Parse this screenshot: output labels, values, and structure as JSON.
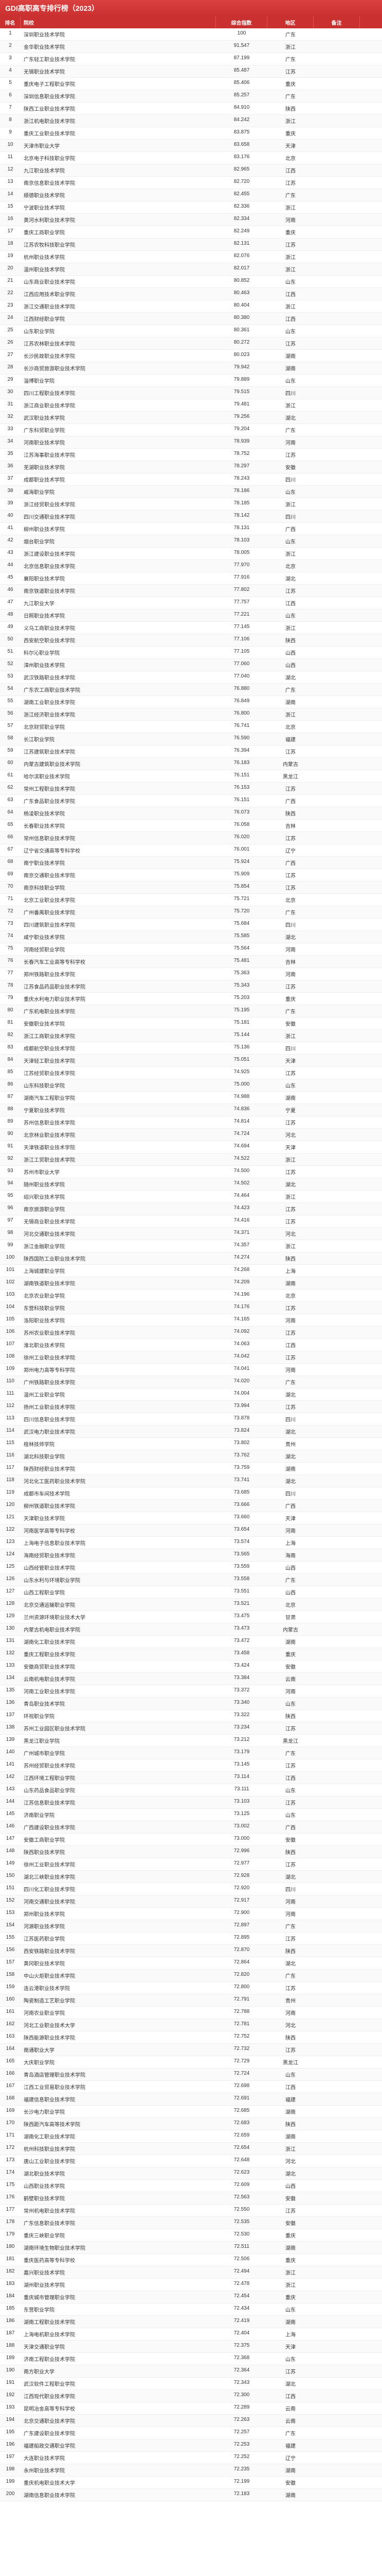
{
  "title": "GDI高职高专排行榜（2023）",
  "columns": [
    "排名",
    "院校",
    "综合指数",
    "地区",
    "备注"
  ],
  "header_bg": "#c93030",
  "header_fg": "#ffffff",
  "row_alt_bg": "#fafafa",
  "rows": [
    [
      1,
      "深圳职业技术学院",
      100,
      "广东",
      ""
    ],
    [
      2,
      "金华职业技术学院",
      91.547,
      "浙江",
      ""
    ],
    [
      3,
      "广东轻工职业技术学院",
      87.199,
      "广东",
      ""
    ],
    [
      4,
      "无锡职业技术学院",
      85.487,
      "江苏",
      ""
    ],
    [
      5,
      "重庆电子工程职业学院",
      85.406,
      "重庆",
      ""
    ],
    [
      6,
      "深圳信息职业技术学院",
      85.257,
      "广东",
      ""
    ],
    [
      7,
      "陕西工业职业技术学院",
      84.91,
      "陕西",
      ""
    ],
    [
      8,
      "浙江机电职业技术学院",
      84.242,
      "浙江",
      ""
    ],
    [
      9,
      "重庆工业职业技术学院",
      83.875,
      "重庆",
      ""
    ],
    [
      10,
      "天津市职业大学",
      83.658,
      "天津",
      ""
    ],
    [
      11,
      "北京电子科技职业学院",
      83.176,
      "北京",
      ""
    ],
    [
      12,
      "九江职业技术学院",
      82.965,
      "江西",
      ""
    ],
    [
      13,
      "南京信息职业技术学院",
      82.72,
      "江苏",
      ""
    ],
    [
      14,
      "顺德职业技术学院",
      82.455,
      "广东",
      ""
    ],
    [
      15,
      "宁波职业技术学院",
      82.336,
      "浙江",
      ""
    ],
    [
      16,
      "黄河水利职业技术学院",
      82.334,
      "河南",
      ""
    ],
    [
      17,
      "重庆工商职业学院",
      82.249,
      "重庆",
      ""
    ],
    [
      18,
      "江苏农牧科技职业学院",
      82.131,
      "江苏",
      ""
    ],
    [
      19,
      "杭州职业技术学院",
      82.076,
      "浙江",
      ""
    ],
    [
      20,
      "温州职业技术学院",
      82.017,
      "浙江",
      ""
    ],
    [
      21,
      "山东商业职业技术学院",
      80.852,
      "山东",
      ""
    ],
    [
      22,
      "江西应用技术职业学院",
      80.463,
      "江西",
      ""
    ],
    [
      23,
      "浙江交通职业技术学院",
      80.404,
      "浙江",
      ""
    ],
    [
      24,
      "江西财经职业学院",
      80.38,
      "江西",
      ""
    ],
    [
      25,
      "山东职业学院",
      80.361,
      "山东",
      ""
    ],
    [
      26,
      "江苏农林职业技术学院",
      80.272,
      "江苏",
      ""
    ],
    [
      27,
      "长沙民政职业技术学院",
      80.023,
      "湖南",
      ""
    ],
    [
      28,
      "长沙商贸旅游职业技术学院",
      79.942,
      "湖南",
      ""
    ],
    [
      29,
      "淄博职业学院",
      79.889,
      "山东",
      ""
    ],
    [
      30,
      "四川工程职业技术学院",
      79.515,
      "四川",
      ""
    ],
    [
      31,
      "浙江商业职业技术学院",
      79.481,
      "浙江",
      ""
    ],
    [
      32,
      "武汉职业技术学院",
      79.256,
      "湖北",
      ""
    ],
    [
      33,
      "广东科贸职业学院",
      79.204,
      "广东",
      ""
    ],
    [
      34,
      "河南职业技术学院",
      78.939,
      "河南",
      ""
    ],
    [
      35,
      "江苏海事职业技术学院",
      78.752,
      "江苏",
      ""
    ],
    [
      36,
      "芜湖职业技术学院",
      78.297,
      "安徽",
      ""
    ],
    [
      37,
      "成都职业技术学院",
      78.243,
      "四川",
      ""
    ],
    [
      38,
      "威海职业学院",
      78.186,
      "山东",
      ""
    ],
    [
      39,
      "浙江经贸职业技术学院",
      78.185,
      "浙江",
      ""
    ],
    [
      40,
      "四川交通职业技术学院",
      78.142,
      "四川",
      ""
    ],
    [
      41,
      "柳州职业技术学院",
      78.131,
      "广西",
      ""
    ],
    [
      42,
      "烟台职业学院",
      78.103,
      "山东",
      ""
    ],
    [
      43,
      "浙江建设职业技术学院",
      78.005,
      "浙江",
      ""
    ],
    [
      44,
      "北京信息职业技术学院",
      77.97,
      "北京",
      ""
    ],
    [
      45,
      "襄阳职业技术学院",
      77.916,
      "湖北",
      ""
    ],
    [
      46,
      "南京铁道职业技术学院",
      77.802,
      "江苏",
      ""
    ],
    [
      47,
      "九江职业大学",
      77.757,
      "江西",
      ""
    ],
    [
      48,
      "日照职业技术学院",
      77.221,
      "山东",
      ""
    ],
    [
      49,
      "义乌工商职业技术学院",
      77.145,
      "浙江",
      ""
    ],
    [
      50,
      "西安航空职业技术学院",
      77.106,
      "陕西",
      ""
    ],
    [
      51,
      "科尔沁职业学院",
      77.105,
      "山西",
      ""
    ],
    [
      52,
      "漳州职业技术学院",
      77.06,
      "山西",
      ""
    ],
    [
      53,
      "武汉铁路职业技术学院",
      77.04,
      "湖北",
      ""
    ],
    [
      54,
      "广东农工商职业技术学院",
      76.88,
      "广东",
      ""
    ],
    [
      55,
      "湖南工业职业技术学院",
      76.849,
      "湖南",
      ""
    ],
    [
      56,
      "浙江经济职业技术学院",
      76.8,
      "浙江",
      ""
    ],
    [
      57,
      "北京财贸职业学院",
      76.741,
      "北京",
      ""
    ],
    [
      58,
      "长江职业学院",
      76.59,
      "福建",
      ""
    ],
    [
      59,
      "江苏建筑职业技术学院",
      76.394,
      "江苏",
      ""
    ],
    [
      60,
      "内蒙古建筑职业技术学院",
      76.183,
      "内蒙古",
      ""
    ],
    [
      61,
      "哈尔滨职业技术学院",
      76.151,
      "黑龙江",
      ""
    ],
    [
      62,
      "常州工程职业技术学院",
      76.153,
      "江苏",
      ""
    ],
    [
      63,
      "广东食品职业技术学院",
      76.151,
      "广西",
      ""
    ],
    [
      64,
      "杨凌职业技术学院",
      76.073,
      "陕西",
      ""
    ],
    [
      65,
      "长春职业技术学院",
      76.058,
      "吉林",
      ""
    ],
    [
      66,
      "常州信息职业技术学院",
      76.02,
      "江苏",
      ""
    ],
    [
      67,
      "辽宁省交通高等专科学校",
      76.001,
      "辽宁",
      ""
    ],
    [
      68,
      "南宁职业技术学院",
      75.924,
      "广西",
      ""
    ],
    [
      69,
      "南京交通职业技术学院",
      75.909,
      "江苏",
      ""
    ],
    [
      70,
      "南京科技职业学院",
      75.854,
      "江苏",
      ""
    ],
    [
      71,
      "北京工业职业技术学院",
      75.721,
      "北京",
      ""
    ],
    [
      72,
      "广州番禺职业技术学院",
      75.72,
      "广东",
      ""
    ],
    [
      73,
      "四川建筑职业技术学院",
      75.684,
      "四川",
      ""
    ],
    [
      74,
      "咸宁职业技术学院",
      75.585,
      "湖北",
      ""
    ],
    [
      75,
      "河南经贸职业学院",
      75.564,
      "河南",
      ""
    ],
    [
      76,
      "长春汽车工业高等专科学校",
      75.481,
      "吉林",
      ""
    ],
    [
      77,
      "郑州铁路职业技术学院",
      75.363,
      "河南",
      ""
    ],
    [
      78,
      "江苏食品药品职业技术学院",
      75.343,
      "江苏",
      ""
    ],
    [
      79,
      "重庆水利电力职业技术学院",
      75.203,
      "重庆",
      ""
    ],
    [
      80,
      "广东机电职业技术学院",
      75.195,
      "广东",
      ""
    ],
    [
      81,
      "安徽职业技术学院",
      75.181,
      "安徽",
      ""
    ],
    [
      82,
      "浙江工商职业技术学院",
      75.144,
      "浙江",
      ""
    ],
    [
      83,
      "成都航空职业技术学院",
      75.136,
      "四川",
      ""
    ],
    [
      84,
      "天津轻工职业技术学院",
      75.051,
      "天津",
      ""
    ],
    [
      85,
      "江苏经贸职业技术学院",
      74.925,
      "江苏",
      ""
    ],
    [
      86,
      "山东科技职业学院",
      75.0,
      "山东",
      ""
    ],
    [
      87,
      "湖南汽车工程职业学院",
      74.988,
      "湖南",
      ""
    ],
    [
      88,
      "宁夏职业技术学院",
      74.836,
      "宁夏",
      ""
    ],
    [
      89,
      "苏州信息职业技术学院",
      74.814,
      "江苏",
      ""
    ],
    [
      90,
      "北京林业职业技术学院",
      74.724,
      "河北",
      ""
    ],
    [
      91,
      "天津铁道职业技术学院",
      74.694,
      "天津",
      ""
    ],
    [
      92,
      "浙江工贸职业技术学院",
      74.522,
      "浙江",
      ""
    ],
    [
      93,
      "苏州市职业大学",
      74.5,
      "江苏",
      ""
    ],
    [
      94,
      "随州职业技术学院",
      74.502,
      "湖北",
      ""
    ],
    [
      95,
      "绍兴职业技术学院",
      74.464,
      "浙江",
      ""
    ],
    [
      96,
      "南京旅游职业学院",
      74.423,
      "江苏",
      ""
    ],
    [
      97,
      "无锡商业职业技术学院",
      74.416,
      "江苏",
      ""
    ],
    [
      98,
      "河北交通职业技术学院",
      74.371,
      "河北",
      ""
    ],
    [
      99,
      "浙江金融职业学院",
      74.357,
      "浙江",
      ""
    ],
    [
      100,
      "陕西国防工业职业技术学院",
      74.274,
      "陕西",
      ""
    ],
    [
      101,
      "上海城建职业学院",
      74.268,
      "上海",
      ""
    ],
    [
      102,
      "湖南铁道职业技术学院",
      74.209,
      "湖南",
      ""
    ],
    [
      103,
      "北京农业职业学院",
      74.196,
      "北京",
      ""
    ],
    [
      104,
      "东营科技职业学院",
      74.176,
      "江苏",
      ""
    ],
    [
      105,
      "洛阳职业技术学院",
      74.165,
      "河南",
      ""
    ],
    [
      106,
      "苏州农业职业技术学院",
      74.092,
      "江苏",
      ""
    ],
    [
      107,
      "淮北职业技术学院",
      74.063,
      "江西",
      ""
    ],
    [
      108,
      "徐州工业职业技术学院",
      74.042,
      "江苏",
      ""
    ],
    [
      109,
      "郑州电力高等专科学院",
      74.041,
      "河南",
      ""
    ],
    [
      110,
      "广州铁路职业技术学院",
      74.02,
      "广东",
      ""
    ],
    [
      111,
      "温州工业职业学院",
      74.004,
      "湖北",
      ""
    ],
    [
      112,
      "扬州工业职业技术学院",
      73.994,
      "江苏",
      ""
    ],
    [
      113,
      "四川信息职业技术学院",
      73.878,
      "四川",
      ""
    ],
    [
      114,
      "武汉电力职业技术学院",
      73.824,
      "湖北",
      ""
    ],
    [
      115,
      "桂林技师学院",
      73.802,
      "贵州",
      ""
    ],
    [
      116,
      "湖北科技职业学院",
      73.762,
      "湖北",
      ""
    ],
    [
      117,
      "陕西财经职业技术学院",
      73.759,
      "湖南",
      ""
    ],
    [
      118,
      "河北化工医药职业技术学院",
      73.741,
      "湖北",
      ""
    ],
    [
      119,
      "成都市车间技术学院",
      73.685,
      "四川",
      ""
    ],
    [
      120,
      "柳州铁道职业技术学院",
      73.666,
      "广西",
      ""
    ],
    [
      121,
      "天津职业技术学院",
      73.66,
      "天津",
      ""
    ],
    [
      122,
      "河南医学高等专科学校",
      73.654,
      "河南",
      ""
    ],
    [
      123,
      "上海电子信息职业技术学院",
      73.574,
      "上海",
      ""
    ],
    [
      124,
      "海南经贸职业技术学院",
      73.565,
      "海南",
      ""
    ],
    [
      125,
      "山西经管职业技术学院",
      73.559,
      "山西",
      ""
    ],
    [
      126,
      "山东水利与环境职业学院",
      73.558,
      "广东",
      ""
    ],
    [
      127,
      "山西工程职业学院",
      73.551,
      "山西",
      ""
    ],
    [
      128,
      "北京交通运输职业学院",
      73.521,
      "北京",
      ""
    ],
    [
      129,
      "兰州资源环境职业技术大学",
      73.475,
      "甘肃",
      ""
    ],
    [
      130,
      "内蒙古机电职业技术学院",
      73.473,
      "内蒙古",
      ""
    ],
    [
      131,
      "湖南化工职业技术学院",
      73.472,
      "湖南",
      ""
    ],
    [
      132,
      "重庆工程职业技术学院",
      73.458,
      "重庆",
      ""
    ],
    [
      133,
      "安徽商贸职业技术学院",
      73.424,
      "安徽",
      ""
    ],
    [
      134,
      "云南机电职业技术学院",
      73.384,
      "云南",
      ""
    ],
    [
      135,
      "河南工业职业技术学院",
      73.372,
      "河南",
      ""
    ],
    [
      136,
      "青岛职业技术学院",
      73.34,
      "山东",
      ""
    ],
    [
      137,
      "环视职业学院",
      73.322,
      "陕西",
      ""
    ],
    [
      138,
      "苏州工业园区职业技术学院",
      73.234,
      "江苏",
      ""
    ],
    [
      139,
      "黑龙江职业学院",
      73.212,
      "黑龙江",
      ""
    ],
    [
      140,
      "广州城市职业学院",
      73.179,
      "广东",
      ""
    ],
    [
      141,
      "苏州经贸职业技术学院",
      73.145,
      "江苏",
      ""
    ],
    [
      142,
      "江西环境工程职业学院",
      73.114,
      "江西",
      ""
    ],
    [
      143,
      "山东药品食品职业学院",
      73.111,
      "山东",
      ""
    ],
    [
      144,
      "江苏信息职业技术学院",
      73.103,
      "江苏",
      ""
    ],
    [
      145,
      "济南职业学院",
      73.125,
      "山东",
      ""
    ],
    [
      146,
      "广西建设职业技术学院",
      73.002,
      "广西",
      ""
    ],
    [
      147,
      "安徽工商职业学院",
      73.0,
      "安徽",
      ""
    ],
    [
      148,
      "陕西职业技术学院",
      72.996,
      "陕西",
      ""
    ],
    [
      149,
      "徐州工业职业技术学院",
      72.977,
      "江苏",
      ""
    ],
    [
      150,
      "湖北三峡职业技术学院",
      72.928,
      "湖北",
      ""
    ],
    [
      151,
      "四川化工职业技术学院",
      72.92,
      "四川",
      ""
    ],
    [
      152,
      "河南交通职业技术学院",
      72.917,
      "河南",
      ""
    ],
    [
      153,
      "郑州职业技术学院",
      72.9,
      "河南",
      ""
    ],
    [
      154,
      "河源职业技术学院",
      72.897,
      "广东",
      ""
    ],
    [
      155,
      "江苏医药职业学院",
      72.895,
      "江苏",
      ""
    ],
    [
      156,
      "西安铁路职业技术学院",
      72.87,
      "陕西",
      ""
    ],
    [
      157,
      "黄冈职业技术学院",
      72.864,
      "湖北",
      ""
    ],
    [
      158,
      "中山火炬职业技术学院",
      72.82,
      "广东",
      ""
    ],
    [
      159,
      "连云港职业技术学院",
      72.8,
      "江苏",
      ""
    ],
    [
      160,
      "陶瓷制造工艺职业学院",
      72.791,
      "贵州",
      ""
    ],
    [
      161,
      "河南农业职业学院",
      72.788,
      "河南",
      ""
    ],
    [
      162,
      "河北工业职业技术大学",
      72.781,
      "河北",
      ""
    ],
    [
      163,
      "陕西能源职业技术学院",
      72.752,
      "陕西",
      ""
    ],
    [
      164,
      "南通职业大学",
      72.732,
      "江苏",
      ""
    ],
    [
      165,
      "大庆职业学院",
      72.729,
      "黑龙江",
      ""
    ],
    [
      166,
      "青岛酒店管理职业技术学院",
      72.724,
      "山东",
      ""
    ],
    [
      167,
      "江西工业贸易职业技术学院",
      72.698,
      "江西",
      ""
    ],
    [
      168,
      "福建信息职业技术学院",
      72.691,
      "福建",
      ""
    ],
    [
      169,
      "长沙电力职业学院",
      72.685,
      "湖南",
      ""
    ],
    [
      170,
      "陕西距汽车高等技术学院",
      72.683,
      "陕西",
      ""
    ],
    [
      171,
      "湖南化工职业技术学院",
      72.659,
      "湖南",
      ""
    ],
    [
      172,
      "杭州科技职业技术学院",
      72.654,
      "浙江",
      ""
    ],
    [
      173,
      "唐山工业职业技术学院",
      72.648,
      "河北",
      ""
    ],
    [
      174,
      "湖北职业技术学院",
      72.623,
      "湖北",
      ""
    ],
    [
      175,
      "山西职业技术学院",
      72.609,
      "山西",
      ""
    ],
    [
      176,
      "鹤壁职业技术学院",
      72.563,
      "安徽",
      ""
    ],
    [
      177,
      "常州机电职业技术学院",
      72.55,
      "江苏",
      ""
    ],
    [
      178,
      "广东信息职业技术学院",
      72.535,
      "安徽",
      ""
    ],
    [
      179,
      "重庆三峡职业学院",
      72.53,
      "重庆",
      ""
    ],
    [
      180,
      "湖南环境生物职业技术学院",
      72.511,
      "湖南",
      ""
    ],
    [
      181,
      "重庆医药高等专科学校",
      72.506,
      "重庆",
      ""
    ],
    [
      182,
      "嘉兴职业技术学院",
      72.494,
      "浙江",
      ""
    ],
    [
      183,
      "湖州职业技术学院",
      72.478,
      "浙江",
      ""
    ],
    [
      184,
      "重庆城市管理职业学院",
      72.454,
      "重庆",
      ""
    ],
    [
      185,
      "东营职业学院",
      72.434,
      "山东",
      ""
    ],
    [
      186,
      "湖南工程职业技术学院",
      72.419,
      "湖南",
      ""
    ],
    [
      187,
      "上海电机职业技术学院",
      72.404,
      "上海",
      ""
    ],
    [
      188,
      "天津交通职业学院",
      72.375,
      "天津",
      ""
    ],
    [
      189,
      "济南工程职业技术学院",
      72.368,
      "山东",
      ""
    ],
    [
      190,
      "南方职业大学",
      72.364,
      "江苏",
      ""
    ],
    [
      191,
      "武汉软件工程职业学院",
      72.343,
      "湖北",
      ""
    ],
    [
      192,
      "江西现代职业技术学院",
      72.3,
      "江西",
      ""
    ],
    [
      193,
      "昆明冶金高等专科学校",
      72.289,
      "云南",
      ""
    ],
    [
      194,
      "北京交通职业技术学院",
      72.263,
      "云南",
      ""
    ],
    [
      195,
      "广东建设职业技术学院",
      72.257,
      "广东",
      ""
    ],
    [
      196,
      "福建船政交通职业学院",
      72.253,
      "福建",
      ""
    ],
    [
      197,
      "大连职业技术学院",
      72.252,
      "辽宁",
      ""
    ],
    [
      198,
      "永州职业技术学院",
      72.235,
      "湖南",
      ""
    ],
    [
      199,
      "重庆机电职业技术大学",
      72.199,
      "安徽",
      ""
    ],
    [
      200,
      "湖南信息职业技术学院",
      72.183,
      "湖南",
      ""
    ]
  ]
}
